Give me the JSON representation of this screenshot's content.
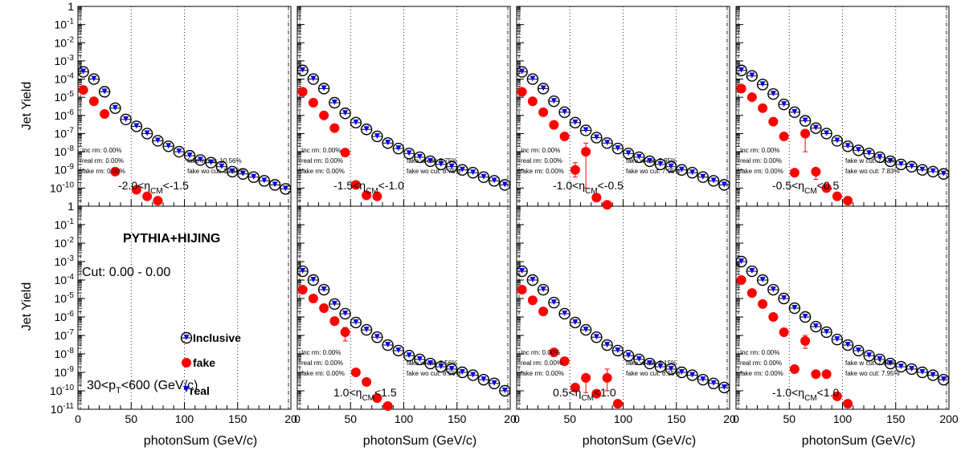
{
  "chart_data": {
    "type": "scatter",
    "y_scale": "log",
    "xlim": [
      0,
      200
    ],
    "ylim": [
      1e-11,
      1
    ],
    "y_ticks": [
      "10-11",
      "10-10",
      "10-9",
      "10-8",
      "10-7",
      "10-6",
      "10-5",
      "10-4",
      "10-3",
      "10-2",
      "10-1",
      "1"
    ],
    "x_ticks": [
      "0",
      "50",
      "100",
      "150",
      "200"
    ],
    "x_ticks_truncated": [
      "0",
      "50",
      "100",
      "150",
      "20"
    ],
    "xlabel": "photonSum (GeV/c)",
    "ylabel": "Jet Yield",
    "grid": "vertical dotted at 50,100,150",
    "colors": {
      "inclusive": "#000000",
      "fake": "#ff0000",
      "real": "#0000ff"
    },
    "legend": {
      "inclusive": "Inclusive",
      "fake": "fake",
      "real": "real"
    },
    "generator_label": "PYTHIA+HIJING",
    "cut_label": "Cut: 0.00 - 0.00",
    "pt_label": "30<pT<600 (GeV/c)",
    "panels": [
      {
        "row": 0,
        "col": 0,
        "eta_label": "-2.0<ηCM<-1.5",
        "stats": {
          "inc": "Inc rm: 0.00%",
          "real": "real rm: 0.00%",
          "fake": "fake rm: 0.00%",
          "fake_w": "fake w cut: 10.56%",
          "fake_wo": "fake wo cut: 10.56%"
        },
        "inclusive": [
          [
            5,
            0.00025
          ],
          [
            15,
            0.0001
          ],
          [
            25,
            2e-05
          ],
          [
            35,
            2.5e-06
          ],
          [
            45,
            6e-07
          ],
          [
            55,
            2.5e-07
          ],
          [
            65,
            1e-07
          ],
          [
            75,
            4e-08
          ],
          [
            85,
            2e-08
          ],
          [
            95,
            1e-08
          ],
          [
            105,
            6e-09
          ],
          [
            115,
            3.5e-09
          ],
          [
            125,
            2.5e-09
          ],
          [
            135,
            1.5e-09
          ],
          [
            145,
            8e-10
          ],
          [
            155,
            6e-10
          ],
          [
            165,
            4e-10
          ],
          [
            175,
            2.5e-10
          ],
          [
            185,
            1.5e-10
          ],
          [
            195,
            9e-11
          ]
        ],
        "fake": [
          [
            5,
            2.5e-05
          ],
          [
            15,
            6e-06
          ],
          [
            25,
            1.2e-06
          ],
          [
            35,
            8e-10
          ],
          [
            55,
            8e-11
          ],
          [
            65,
            3.5e-11
          ],
          [
            75,
            2e-11
          ]
        ],
        "fake_err": [
          [
            5,
            0,
            0
          ],
          [
            15,
            0,
            0
          ],
          [
            25,
            0,
            0
          ],
          [
            35,
            0,
            0
          ],
          [
            55,
            0,
            0
          ],
          [
            65,
            0,
            0
          ],
          [
            75,
            0,
            0
          ]
        ]
      },
      {
        "row": 0,
        "col": 1,
        "eta_label": "-1.5<ηCM<-1.0",
        "stats": {
          "inc": "Inc rm: 0.00%",
          "real": "real rm: 0.00%",
          "fake": "fake rm: 0.00%",
          "fake_w": "fake w cut: 8.75%",
          "fake_wo": "fake wo cut: 8.75%"
        },
        "inclusive": [
          [
            5,
            0.0003
          ],
          [
            15,
            0.0001
          ],
          [
            25,
            3e-05
          ],
          [
            35,
            5e-06
          ],
          [
            45,
            1.3e-06
          ],
          [
            55,
            4e-07
          ],
          [
            65,
            1.7e-07
          ],
          [
            75,
            7e-08
          ],
          [
            85,
            3e-08
          ],
          [
            95,
            1.5e-08
          ],
          [
            105,
            8e-09
          ],
          [
            115,
            5e-09
          ],
          [
            125,
            3e-09
          ],
          [
            135,
            2e-09
          ],
          [
            145,
            1.5e-09
          ],
          [
            155,
            1e-09
          ],
          [
            165,
            7e-10
          ],
          [
            175,
            4e-10
          ],
          [
            185,
            2.5e-10
          ],
          [
            195,
            1.5e-10
          ]
        ],
        "fake": [
          [
            5,
            2e-05
          ],
          [
            15,
            5e-06
          ],
          [
            25,
            1e-06
          ],
          [
            35,
            2e-07
          ],
          [
            45,
            9e-09
          ],
          [
            55,
            1.5e-10
          ],
          [
            65,
            4e-11
          ],
          [
            75,
            3.5e-11
          ]
        ],
        "fake_err": [
          [
            35,
            1.2e-07,
            7e-08
          ],
          [
            45,
            0,
            0
          ],
          [
            55,
            0,
            0
          ],
          [
            65,
            0,
            0
          ],
          [
            75,
            0,
            0
          ]
        ]
      },
      {
        "row": 0,
        "col": 2,
        "eta_label": "-1.0<ηCM<-0.5",
        "stats": {
          "inc": "Inc rm: 0.00%",
          "real": "real rm: 0.00%",
          "fake": "fake rm: 0.00%",
          "fake_w": "fake w cut: 7.95%",
          "fake_wo": "fake wo cut: 7.95%"
        },
        "inclusive": [
          [
            5,
            0.00025
          ],
          [
            15,
            0.0001
          ],
          [
            25,
            3e-05
          ],
          [
            35,
            6e-06
          ],
          [
            45,
            1.5e-06
          ],
          [
            55,
            4e-07
          ],
          [
            65,
            1.5e-07
          ],
          [
            75,
            6e-08
          ],
          [
            85,
            3e-08
          ],
          [
            95,
            1.5e-08
          ],
          [
            105,
            8e-09
          ],
          [
            115,
            5e-09
          ],
          [
            125,
            3e-09
          ],
          [
            135,
            2e-09
          ],
          [
            145,
            1.5e-09
          ],
          [
            155,
            1e-09
          ],
          [
            165,
            7e-10
          ],
          [
            175,
            4e-10
          ],
          [
            185,
            2.5e-10
          ],
          [
            195,
            1.5e-10
          ]
        ],
        "fake": [
          [
            5,
            2e-05
          ],
          [
            15,
            6e-06
          ],
          [
            25,
            1.5e-06
          ],
          [
            35,
            3e-07
          ],
          [
            45,
            7e-08
          ],
          [
            55,
            1e-09
          ],
          [
            65,
            1e-08
          ],
          [
            75,
            3e-11
          ],
          [
            85,
            1.2e-11
          ]
        ],
        "fake_err": [
          [
            55,
            1.5e-09,
            6e-10
          ],
          [
            65,
            2e-08,
            9.9e-09
          ]
        ]
      },
      {
        "row": 0,
        "col": 3,
        "eta_label": "-0.5<ηCM<0.5",
        "stats": {
          "inc": "Inc rm: 0.00%",
          "real": "real rm: 0.00%",
          "fake": "fake rm: 0.00%",
          "fake_w": "fake w cut: 7.83%",
          "fake_wo": "fake wo cut: 7.83%"
        },
        "inclusive": [
          [
            5,
            0.0003
          ],
          [
            15,
            0.00015
          ],
          [
            25,
            5e-05
          ],
          [
            35,
            1.5e-05
          ],
          [
            45,
            4e-06
          ],
          [
            55,
            1.5e-06
          ],
          [
            65,
            5e-07
          ],
          [
            75,
            2e-07
          ],
          [
            85,
            1e-07
          ],
          [
            95,
            4e-08
          ],
          [
            105,
            2e-08
          ],
          [
            115,
            1.2e-08
          ],
          [
            125,
            8e-09
          ],
          [
            135,
            5e-09
          ],
          [
            145,
            3e-09
          ],
          [
            155,
            2e-09
          ],
          [
            165,
            1.5e-09
          ],
          [
            175,
            1e-09
          ],
          [
            185,
            8e-10
          ],
          [
            195,
            6e-10
          ]
        ],
        "fake": [
          [
            5,
            3e-05
          ],
          [
            15,
            1e-05
          ],
          [
            25,
            2.5e-06
          ],
          [
            35,
            4.5e-07
          ],
          [
            45,
            7e-08
          ],
          [
            55,
            7e-10
          ],
          [
            65,
            1e-07
          ],
          [
            75,
            8e-10
          ],
          [
            85,
            1e-10
          ],
          [
            95,
            3.5e-11
          ],
          [
            105,
            2e-11
          ]
        ],
        "fake_err": [
          [
            45,
            0,
            0
          ],
          [
            65,
            0,
            9e-08
          ],
          [
            75,
            0,
            5e-10
          ]
        ]
      },
      {
        "row": 1,
        "col": 1,
        "eta_label": "1.0<ηCM<1.5",
        "stats": {
          "inc": "Inc rm: 0.00%",
          "real": "real rm: 0.00%",
          "fake": "fake rm: 0.00%",
          "fake_w": "fake w cut: 8.56%",
          "fake_wo": "fake wo cut: 8.56%"
        },
        "inclusive": [
          [
            5,
            0.0003
          ],
          [
            15,
            0.0001
          ],
          [
            25,
            3e-05
          ],
          [
            35,
            5e-06
          ],
          [
            45,
            1.5e-06
          ],
          [
            55,
            5e-07
          ],
          [
            65,
            2e-07
          ],
          [
            75,
            8e-08
          ],
          [
            85,
            3e-08
          ],
          [
            95,
            1.5e-08
          ],
          [
            105,
            8e-09
          ],
          [
            115,
            5e-09
          ],
          [
            125,
            3e-09
          ],
          [
            135,
            2e-09
          ],
          [
            145,
            1.5e-09
          ],
          [
            155,
            1e-09
          ],
          [
            165,
            7e-10
          ],
          [
            175,
            4e-10
          ],
          [
            185,
            2.5e-10
          ],
          [
            195,
            1e-10
          ]
        ],
        "fake": [
          [
            5,
            3e-05
          ],
          [
            15,
            1e-05
          ],
          [
            25,
            3e-06
          ],
          [
            35,
            6e-07
          ],
          [
            45,
            1.5e-07
          ],
          [
            55,
            1e-09
          ],
          [
            65,
            3e-10
          ],
          [
            75,
            4e-11
          ],
          [
            85,
            1.5e-11
          ]
        ],
        "fake_err": [
          [
            45,
            1.2e-07,
            1e-07
          ],
          [
            55,
            0,
            0
          ]
        ]
      },
      {
        "row": 1,
        "col": 2,
        "eta_label": "0.5<ηCM<1.0",
        "stats": {
          "inc": "Inc rm: 0.00%",
          "real": "real rm: 0.00%",
          "fake": "fake rm: 0.00%",
          "fake_w": "fake w cut: 8.15%",
          "fake_wo": "fake wo cut: 8.15%"
        },
        "inclusive": [
          [
            5,
            0.0003
          ],
          [
            15,
            0.0001
          ],
          [
            25,
            3e-05
          ],
          [
            35,
            6e-06
          ],
          [
            45,
            1.5e-06
          ],
          [
            55,
            5e-07
          ],
          [
            65,
            2e-07
          ],
          [
            75,
            8e-08
          ],
          [
            85,
            3e-08
          ],
          [
            95,
            1.5e-08
          ],
          [
            105,
            8e-09
          ],
          [
            115,
            5e-09
          ],
          [
            125,
            3e-09
          ],
          [
            135,
            2e-09
          ],
          [
            145,
            1.5e-09
          ],
          [
            155,
            1e-09
          ],
          [
            165,
            7e-10
          ],
          [
            175,
            4e-10
          ],
          [
            185,
            2.5e-10
          ],
          [
            195,
            1.5e-10
          ]
        ],
        "fake": [
          [
            5,
            3e-05
          ],
          [
            15,
            8e-06
          ],
          [
            25,
            2e-06
          ],
          [
            35,
            1.2e-08
          ],
          [
            45,
            4e-09
          ],
          [
            55,
            1.5e-10
          ],
          [
            65,
            5e-10
          ],
          [
            75,
            7e-11
          ],
          [
            85,
            5e-10
          ],
          [
            95,
            2e-11
          ]
        ],
        "fake_err": [
          [
            35,
            0,
            0
          ],
          [
            45,
            0,
            0
          ],
          [
            65,
            0,
            4.2e-10
          ],
          [
            85,
            1e-09,
            4e-10
          ]
        ]
      },
      {
        "row": 1,
        "col": 3,
        "eta_label": "-1.0<ηCM<1.0",
        "stats": {
          "inc": "Inc rm: 0.00%",
          "real": "real rm: 0.00%",
          "fake": "fake rm: 0.00%",
          "fake_w": "fake w cut: 7.95%",
          "fake_wo": "fake wo cut: 7.95%"
        },
        "inclusive": [
          [
            5,
            0.001
          ],
          [
            15,
            0.0003
          ],
          [
            25,
            0.0001
          ],
          [
            35,
            3e-05
          ],
          [
            45,
            1e-05
          ],
          [
            55,
            3e-06
          ],
          [
            65,
            1e-06
          ],
          [
            75,
            3e-07
          ],
          [
            85,
            1.5e-07
          ],
          [
            95,
            6e-08
          ],
          [
            105,
            3e-08
          ],
          [
            115,
            1.5e-08
          ],
          [
            125,
            8e-09
          ],
          [
            135,
            5e-09
          ],
          [
            145,
            3e-09
          ],
          [
            155,
            2e-09
          ],
          [
            165,
            1.5e-09
          ],
          [
            175,
            1e-09
          ],
          [
            185,
            7e-10
          ],
          [
            195,
            4e-10
          ]
        ],
        "fake": [
          [
            5,
            0.0001
          ],
          [
            15,
            2e-05
          ],
          [
            25,
            5e-06
          ],
          [
            35,
            1e-06
          ],
          [
            45,
            1.5e-07
          ],
          [
            55,
            1.5e-09
          ],
          [
            65,
            5e-08
          ],
          [
            75,
            8e-10
          ],
          [
            85,
            8e-10
          ],
          [
            95,
            5e-11
          ],
          [
            105,
            2e-11
          ]
        ],
        "fake_err": [
          [
            65,
            5e-08,
            3e-08
          ],
          [
            85,
            0,
            0
          ]
        ]
      }
    ]
  }
}
